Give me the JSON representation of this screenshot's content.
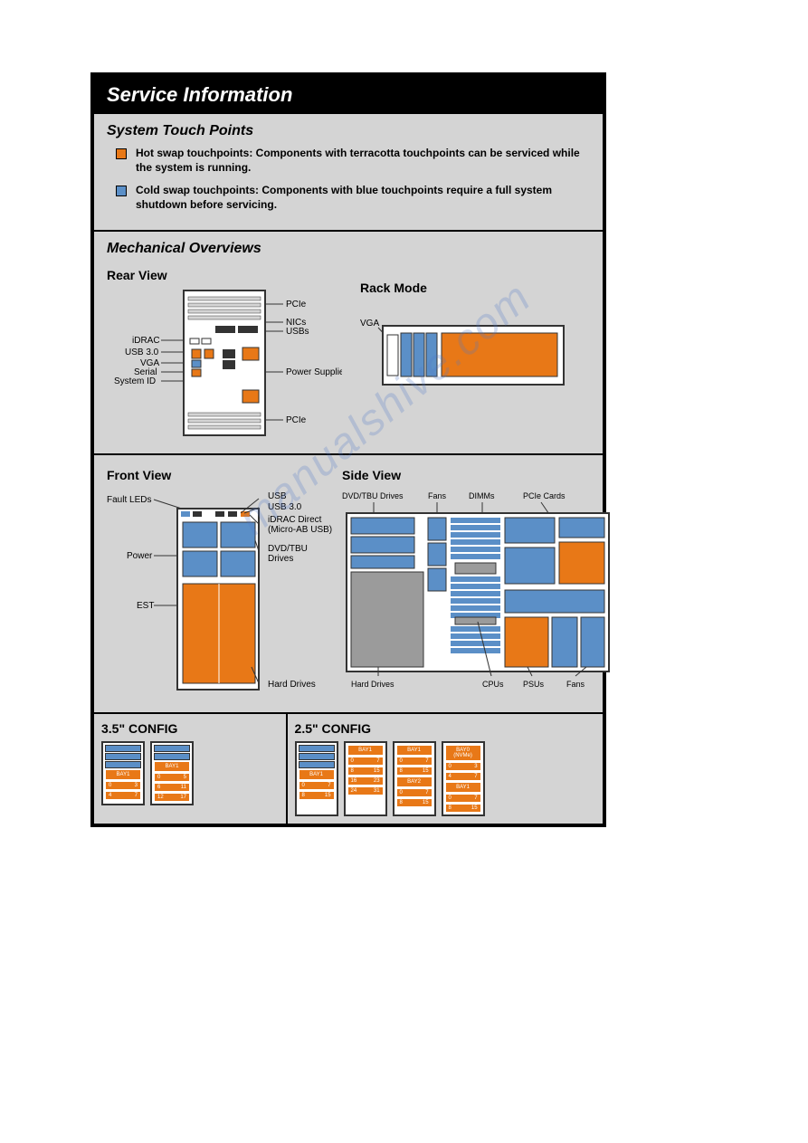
{
  "title": "Service Information",
  "touchpoints": {
    "heading": "System Touch Points",
    "hot": {
      "color": "#e87817",
      "text": "Hot swap touchpoints: Components with terracotta touchpoints can be serviced while the system is running."
    },
    "cold": {
      "color": "#5b8fc7",
      "text": "Cold swap touchpoints: Components with blue touchpoints require a full system shutdown before servicing."
    }
  },
  "mech": {
    "heading": "Mechanical Overviews",
    "rear": {
      "title": "Rear View",
      "left_labels": [
        "iDRAC",
        "USB 3.0",
        "VGA",
        "Serial",
        "System ID"
      ],
      "right_labels": [
        "PCIe",
        "NICs",
        "USBs",
        "Power Supplies",
        "PCIe"
      ]
    },
    "rack": {
      "title": "Rack Mode",
      "label": "VGA"
    },
    "front": {
      "title": "Front View",
      "left_labels": [
        "Fault LEDs",
        "Power",
        "EST"
      ],
      "right_labels": [
        "USB",
        "USB 3.0",
        "iDRAC Direct",
        "(Micro-AB USB)",
        "DVD/TBU",
        "Drives",
        "Hard Drives"
      ]
    },
    "side": {
      "title": "Side View",
      "top_labels": [
        "DVD/TBU Drives",
        "Fans",
        "DIMMs",
        "PCIe Cards"
      ],
      "bottom_labels": [
        "Hard Drives",
        "CPUs",
        "PSUs",
        "Fans"
      ]
    }
  },
  "cfg35": {
    "title": "3.5\" CONFIG",
    "towers": [
      {
        "blue": 3,
        "bay": "BAY1",
        "rows": [
          [
            "0",
            "3"
          ],
          [
            "4",
            "7"
          ]
        ]
      },
      {
        "blue": 2,
        "bay": "BAY1",
        "rows": [
          [
            "0",
            "5"
          ],
          [
            "6",
            "11"
          ],
          [
            "12",
            "17"
          ]
        ]
      }
    ]
  },
  "cfg25": {
    "title": "2.5\" CONFIG",
    "towers": [
      {
        "blue": 3,
        "sections": [
          {
            "bay": "BAY1",
            "rows": [
              [
                "0",
                "7"
              ],
              [
                "8",
                "15"
              ]
            ]
          }
        ]
      },
      {
        "blue": 0,
        "sections": [
          {
            "bay": "BAY1",
            "rows": [
              [
                "0",
                "7"
              ],
              [
                "8",
                "15"
              ],
              [
                "16",
                "23"
              ],
              [
                "24",
                "31"
              ]
            ]
          }
        ]
      },
      {
        "blue": 0,
        "sections": [
          {
            "bay": "BAY1",
            "rows": [
              [
                "0",
                "7"
              ],
              [
                "8",
                "15"
              ]
            ]
          },
          {
            "bay": "BAY2",
            "rows": [
              [
                "0",
                "7"
              ],
              [
                "8",
                "15"
              ]
            ]
          }
        ]
      },
      {
        "blue": 0,
        "sections": [
          {
            "bay": "BAY0\n(NVMe)",
            "rows": [
              [
                "0",
                "3"
              ],
              [
                "4",
                "7"
              ]
            ]
          },
          {
            "bay": "BAY1",
            "rows": [
              [
                "0",
                "7"
              ],
              [
                "8",
                "15"
              ]
            ]
          }
        ]
      }
    ]
  },
  "colors": {
    "orange": "#e87817",
    "blue": "#5b8fc7",
    "gray": "#9b9b9b",
    "border": "#333",
    "bg": "#d4d4d4"
  },
  "watermark": "manualshive.com"
}
